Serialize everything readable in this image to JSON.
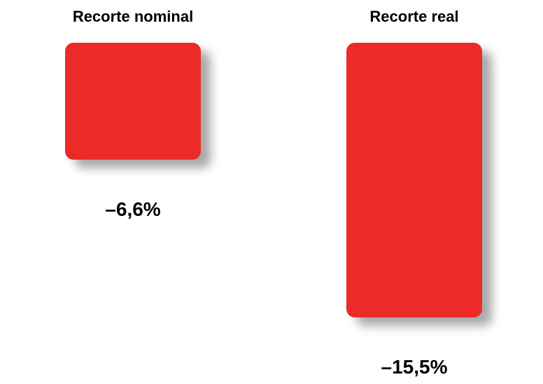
{
  "chart_data": {
    "type": "bar",
    "categories": [
      "Recorte nominal",
      "Recorte real"
    ],
    "values": [
      -6.6,
      -15.5
    ],
    "value_labels": [
      "–6,6%",
      "–15,5%"
    ],
    "title": "",
    "xlabel": "",
    "ylabel": "",
    "ylim": [
      -15.5,
      0
    ],
    "grid": false,
    "legend": "none",
    "colors": {
      "bar": "#ec2a28",
      "bar_shadow": "#8a8a8a",
      "baseline": "#555555",
      "text": "#000000"
    }
  }
}
